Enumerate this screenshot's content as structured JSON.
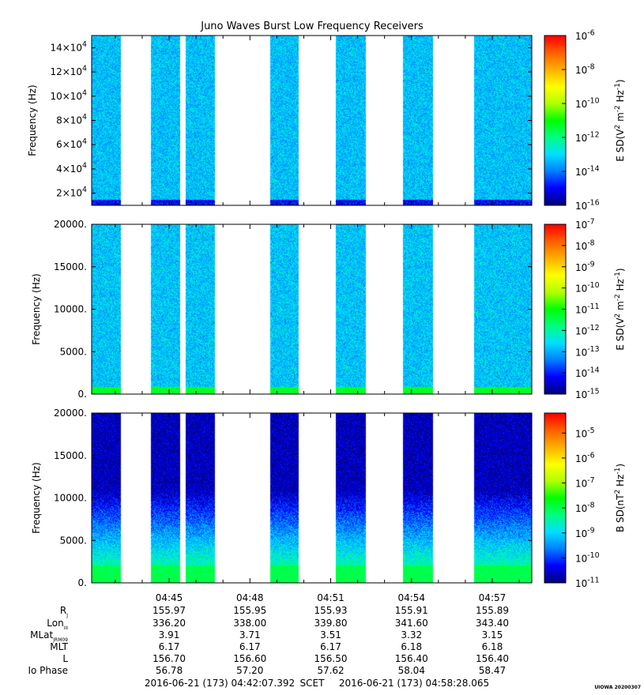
{
  "title": "Juno Waves Burst Low Frequency Receivers",
  "colors": {
    "colormap": [
      "#00007f",
      "#0000ff",
      "#0080ff",
      "#00e0ff",
      "#00ff80",
      "#00ff00",
      "#b0ff00",
      "#ffff00",
      "#ffb000",
      "#ff6000",
      "#ff0000"
    ],
    "background": "#ffffff"
  },
  "chart_data": [
    {
      "type": "heatmap",
      "panel": "E field spectrogram (upper band)",
      "ylabel": "Frequency (Hz)",
      "ylim": [
        10000,
        150000
      ],
      "yticks": [
        {
          "v": 20000,
          "m": "2",
          "e": "4"
        },
        {
          "v": 40000,
          "m": "4",
          "e": "4"
        },
        {
          "v": 60000,
          "m": "6",
          "e": "4"
        },
        {
          "v": 80000,
          "m": "8",
          "e": "4"
        },
        {
          "v": 100000,
          "m": "10",
          "e": "4"
        },
        {
          "v": 120000,
          "m": "12",
          "e": "4"
        },
        {
          "v": 140000,
          "m": "14",
          "e": "4"
        }
      ],
      "colorbar": {
        "label_base": "E SD(V",
        "label_sup1": "2",
        "label_mid": " m",
        "label_sup2": "-2",
        "label_hz": " Hz",
        "label_sup3": "-1",
        "label_end": ")",
        "log_range": [
          -16,
          -6
        ],
        "ticks": [
          {
            "m": "10",
            "e": "-6"
          },
          {
            "m": "10",
            "e": "-8"
          },
          {
            "m": "10",
            "e": "-10"
          },
          {
            "m": "10",
            "e": "-12"
          },
          {
            "m": "10",
            "e": "-14"
          },
          {
            "m": "10",
            "e": "-16"
          }
        ]
      },
      "baseline_log": -13.3,
      "low_band_log": -15.0
    },
    {
      "type": "heatmap",
      "panel": "E field spectrogram (low band)",
      "ylabel": "Frequency (Hz)",
      "ylim": [
        0,
        20000
      ],
      "yticks": [
        {
          "v": 0,
          "t": "0."
        },
        {
          "v": 5000,
          "t": "5000."
        },
        {
          "v": 10000,
          "t": "10000."
        },
        {
          "v": 15000,
          "t": "15000."
        },
        {
          "v": 20000,
          "t": "20000."
        }
      ],
      "colorbar": {
        "label_base": "E SD(V",
        "label_sup1": "2",
        "label_mid": " m",
        "label_sup2": "-2",
        "label_hz": " Hz",
        "label_sup3": "-1",
        "label_end": ")",
        "log_range": [
          -15,
          -7
        ],
        "ticks": [
          {
            "m": "10",
            "e": "-7"
          },
          {
            "m": "10",
            "e": "-8"
          },
          {
            "m": "10",
            "e": "-9"
          },
          {
            "m": "10",
            "e": "-10"
          },
          {
            "m": "10",
            "e": "-11"
          },
          {
            "m": "10",
            "e": "-12"
          },
          {
            "m": "10",
            "e": "-13"
          },
          {
            "m": "10",
            "e": "-14"
          },
          {
            "m": "10",
            "e": "-15"
          }
        ]
      },
      "baseline_log": -12.8,
      "low_band_log": -11.2
    },
    {
      "type": "heatmap",
      "panel": "B field spectrogram",
      "ylabel": "Frequency (Hz)",
      "ylim": [
        0,
        20000
      ],
      "yticks": [
        {
          "v": 0,
          "t": "0."
        },
        {
          "v": 5000,
          "t": "5000."
        },
        {
          "v": 10000,
          "t": "10000."
        },
        {
          "v": 15000,
          "t": "15000."
        },
        {
          "v": 20000,
          "t": "20000."
        }
      ],
      "colorbar": {
        "label_base": "B SD(nT",
        "label_sup1": "2",
        "label_mid": "",
        "label_sup2": "",
        "label_hz": " Hz",
        "label_sup3": "-1",
        "label_end": ")",
        "log_range": [
          -11,
          -4.2
        ],
        "ticks": [
          {
            "m": "10",
            "e": "-5"
          },
          {
            "m": "10",
            "e": "-6"
          },
          {
            "m": "10",
            "e": "-7"
          },
          {
            "m": "10",
            "e": "-8"
          },
          {
            "m": "10",
            "e": "-9"
          },
          {
            "m": "10",
            "e": "-10"
          },
          {
            "m": "10",
            "e": "-11"
          }
        ]
      },
      "baseline_log": -10.7,
      "low_band_log": -8.0
    }
  ],
  "time_axis": {
    "start": "04:42:07.392",
    "end": "04:58:28.065",
    "tick_minutes_major": [
      "04:45",
      "04:48",
      "04:51",
      "04:54",
      "04:57"
    ],
    "data_segments_minutes": [
      [
        42.12,
        43.2
      ],
      [
        44.3,
        45.4
      ],
      [
        45.6,
        46.7
      ],
      [
        48.75,
        49.8
      ],
      [
        51.2,
        52.3
      ],
      [
        53.7,
        54.8
      ],
      [
        56.35,
        58.47
      ]
    ]
  },
  "ephemeris": {
    "labels": [
      {
        "main": "R",
        "sub": "J"
      },
      {
        "main": "Lon",
        "sub": "III"
      },
      {
        "main": "MLat",
        "sub": "JRM09"
      },
      {
        "main": "MLT",
        "sub": ""
      },
      {
        "main": "L",
        "sub": ""
      },
      {
        "main": "Io Phase",
        "sub": ""
      }
    ],
    "columns": [
      {
        "time": "04:45",
        "values": [
          "155.97",
          "336.20",
          "3.91",
          "6.17",
          "156.70",
          "56.78"
        ]
      },
      {
        "time": "04:48",
        "values": [
          "155.95",
          "338.00",
          "3.71",
          "6.17",
          "156.60",
          "57.20"
        ]
      },
      {
        "time": "04:51",
        "values": [
          "155.93",
          "339.80",
          "3.51",
          "6.17",
          "156.50",
          "57.62"
        ]
      },
      {
        "time": "04:54",
        "values": [
          "155.91",
          "341.60",
          "3.32",
          "6.18",
          "156.40",
          "58.04"
        ]
      },
      {
        "time": "04:57",
        "values": [
          "155.89",
          "343.40",
          "3.15",
          "6.18",
          "156.40",
          "58.47"
        ]
      }
    ]
  },
  "footer": {
    "left": "2016-06-21 (173) 04:42:07.392",
    "mid": "SCET",
    "right": "2016-06-21 (173) 04:58:28.065",
    "stamp": "UIOWA 20200307"
  }
}
